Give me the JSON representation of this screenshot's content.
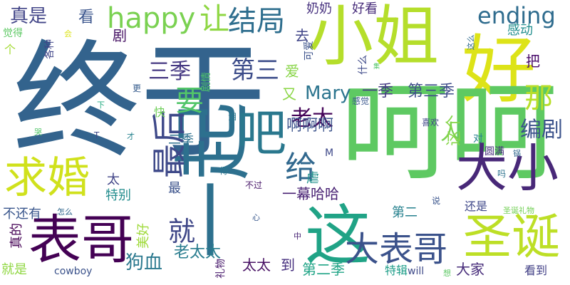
{
  "words": [
    {
      "text": "终于",
      "color": "#33638d",
      "vertical": false
    },
    {
      "text": "小姐",
      "color": "#b5de2b",
      "vertical": false
    },
    {
      "text": "好",
      "color": "#dde318",
      "vertical": false
    },
    {
      "text": "呵呵",
      "color": "#5ec962",
      "vertical": false
    },
    {
      "text": "一起",
      "color": "#2d708e",
      "vertical": true
    },
    {
      "text": "这",
      "color": "#20a386",
      "vertical": false
    },
    {
      "text": "表哥",
      "color": "#440154",
      "vertical": false
    },
    {
      "text": "大小",
      "color": "#482878",
      "vertical": false
    },
    {
      "text": "圣诞",
      "color": "#bddf26",
      "vertical": false
    },
    {
      "text": "大表哥",
      "color": "#3b528b",
      "vertical": false
    },
    {
      "text": "吧",
      "color": "#2a788e",
      "vertical": false
    },
    {
      "text": "最后",
      "color": "#3e4989",
      "vertical": true
    },
    {
      "text": "求婚",
      "color": "#d0e11c",
      "vertical": false
    },
    {
      "text": "happy",
      "color": "#7ad151",
      "vertical": false
    },
    {
      "text": "让",
      "color": "#8fd744",
      "vertical": false
    },
    {
      "text": "结局",
      "color": "#2e6e8e",
      "vertical": false
    },
    {
      "text": "ending",
      "color": "#2f6c8e",
      "vertical": false
    },
    {
      "text": "那",
      "color": "#b8de29",
      "vertical": false
    },
    {
      "text": "要",
      "color": "#52c569",
      "vertical": false
    },
    {
      "text": "给",
      "color": "#31688e",
      "vertical": false
    },
    {
      "text": "就",
      "color": "#3f4788",
      "vertical": false
    },
    {
      "text": "第三",
      "color": "#3d4d8a",
      "vertical": false
    },
    {
      "text": "真是",
      "color": "#414487",
      "vertical": false
    },
    {
      "text": "看",
      "color": "#3a548c",
      "vertical": false
    },
    {
      "text": "剧",
      "color": "#471365",
      "vertical": false
    },
    {
      "text": "三季",
      "color": "#453882",
      "vertical": false
    },
    {
      "text": "Mary",
      "color": "#2b748e",
      "vertical": false
    },
    {
      "text": "一季",
      "color": "#443983",
      "vertical": false
    },
    {
      "text": "第三季",
      "color": "#3e4c8a",
      "vertical": false
    },
    {
      "text": "编剧",
      "color": "#3b528b",
      "vertical": false
    },
    {
      "text": "老太",
      "color": "#450559",
      "vertical": false
    },
    {
      "text": "人",
      "color": "#7ad151",
      "vertical": false
    },
    {
      "text": "啊啊啊",
      "color": "#3b528b",
      "vertical": false
    },
    {
      "text": "这个",
      "color": "#86d549",
      "vertical": true
    },
    {
      "text": "又",
      "color": "#8bd646",
      "vertical": false
    },
    {
      "text": "爱",
      "color": "#89d548",
      "vertical": false
    },
    {
      "text": "去",
      "color": "#404588",
      "vertical": false
    },
    {
      "text": "奶奶",
      "color": "#46307e",
      "vertical": false
    },
    {
      "text": "好看",
      "color": "#472c7a",
      "vertical": false
    },
    {
      "text": "感动",
      "color": "#218e8d",
      "vertical": false
    },
    {
      "text": "把",
      "color": "#4a0c6b",
      "vertical": false
    },
    {
      "text": "狗血",
      "color": "#2a788e",
      "vertical": false
    },
    {
      "text": "老太太",
      "color": "#287c8e",
      "vertical": false
    },
    {
      "text": "太太",
      "color": "#471063",
      "vertical": false
    },
    {
      "text": "到",
      "color": "#462f7e",
      "vertical": false
    },
    {
      "text": "第二季",
      "color": "#20a486",
      "vertical": false
    },
    {
      "text": "第二",
      "color": "#26818e",
      "vertical": false
    },
    {
      "text": "大家",
      "color": "#472c7a",
      "vertical": false
    },
    {
      "text": "特辑",
      "color": "#1f9e89",
      "vertical": false
    },
    {
      "text": "看到",
      "color": "#424086",
      "vertical": false
    },
    {
      "text": "还是",
      "color": "#3f4889",
      "vertical": false
    },
    {
      "text": "一幕哈哈",
      "color": "#482173",
      "vertical": false
    },
    {
      "text": "虐",
      "color": "#21918c",
      "vertical": false
    },
    {
      "text": "二季",
      "color": "#2d708e",
      "vertical": false
    },
    {
      "text": "快",
      "color": "#6ece58",
      "vertical": false
    },
    {
      "text": "特别",
      "color": "#228c8d",
      "vertical": false
    },
    {
      "text": "太",
      "color": "#414487",
      "vertical": false
    },
    {
      "text": "最",
      "color": "#3b528b",
      "vertical": false
    },
    {
      "text": "不还有",
      "color": "#39568c",
      "vertical": false
    },
    {
      "text": "真的",
      "color": "#440154",
      "vertical": true
    },
    {
      "text": "美好",
      "color": "#9fda3a",
      "vertical": true
    },
    {
      "text": "就是",
      "color": "#90d743",
      "vertical": false
    },
    {
      "text": "cowboy",
      "color": "#3b528b",
      "vertical": false
    },
    {
      "text": "will",
      "color": "#3e4a89",
      "vertical": false
    },
    {
      "text": "礼物",
      "color": "#481a6c",
      "vertical": true
    },
    {
      "text": "圣诞礼物",
      "color": "#73d056",
      "vertical": false
    },
    {
      "text": "更",
      "color": "#365c8d",
      "vertical": false
    },
    {
      "text": "剧情",
      "color": "#4ec36b",
      "vertical": true
    },
    {
      "text": "什么",
      "color": "#3e4989",
      "vertical": true
    },
    {
      "text": "可爱",
      "color": "#3b528b",
      "vertical": true
    },
    {
      "text": "感觉",
      "color": "#39568c",
      "vertical": false
    },
    {
      "text": "泪",
      "color": "#2a788e",
      "vertical": false
    },
    {
      "text": "喜欢",
      "color": "#404688",
      "vertical": false
    },
    {
      "text": "对",
      "color": "#26818e",
      "vertical": false
    },
    {
      "text": "圆满",
      "color": "#472f7d",
      "vertical": false
    },
    {
      "text": "锅",
      "color": "#31688e",
      "vertical": false
    },
    {
      "text": "吗",
      "color": "#2c728e",
      "vertical": false
    },
    {
      "text": "说",
      "color": "#3a548c",
      "vertical": false
    },
    {
      "text": "M",
      "color": "#3e4989",
      "vertical": false
    },
    {
      "text": "不过",
      "color": "#481769",
      "vertical": false
    },
    {
      "text": "心",
      "color": "#38588c",
      "vertical": false
    },
    {
      "text": "得",
      "color": "#2b758e",
      "vertical": false
    },
    {
      "text": "中",
      "color": "#482475",
      "vertical": false
    },
    {
      "text": "怎么",
      "color": "#31688e",
      "vertical": false
    },
    {
      "text": "想",
      "color": "#5cc863",
      "vertical": false
    },
    {
      "text": "下",
      "color": "#25ab82",
      "vertical": false
    },
    {
      "text": "T",
      "color": "#3e4a89",
      "vertical": false
    },
    {
      "text": "才",
      "color": "#26828e",
      "vertical": false
    },
    {
      "text": "个",
      "color": "#a5db36",
      "vertical": false
    },
    {
      "text": "觉得",
      "color": "#5cc863",
      "vertical": false
    },
    {
      "text": "会",
      "color": "#dde318",
      "vertical": false
    },
    {
      "text": "各种",
      "color": "#404588",
      "vertical": true
    },
    {
      "text": "集",
      "color": "#52c569",
      "vertical": false
    },
    {
      "text": "这么",
      "color": "#2f6b8e",
      "vertical": true
    },
    {
      "text": "哭",
      "color": "#52c569",
      "vertical": false
    }
  ]
}
